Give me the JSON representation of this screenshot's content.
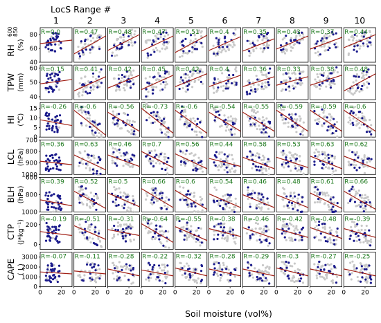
{
  "chart_data": {
    "type": "scatter",
    "title": "LocS  Range #",
    "xlabel": "Soil moisture (vol%)",
    "columns": [
      "1",
      "2",
      "3",
      "4",
      "5",
      "6",
      "7",
      "8",
      "9",
      "10"
    ],
    "x_range": [
      0,
      30
    ],
    "x_ticks": [
      "0",
      "20"
    ],
    "colors": {
      "highlighted_points": "#1a1a8c",
      "background_points": "#c8c8c8",
      "regression_line": "#a01e14",
      "r_label": "#1e7a1e"
    },
    "rows": [
      {
        "name": "RH",
        "sub_top": "600",
        "sub_bottom": "850",
        "unit": "(%)",
        "y_range": [
          40,
          90
        ],
        "y_ticks": [
          {
            "label": "80",
            "value": 80
          },
          {
            "label": "60",
            "value": 60
          },
          {
            "label": "40",
            "value": 40
          }
        ],
        "r_values": [
          "R=0.0",
          "R=0.47",
          "R=0.48",
          "R=0.47",
          "R=0.51",
          "R=0.4",
          "R=0.35",
          "R=0.43",
          "R=0.37",
          "R=0.44"
        ],
        "fit_start": [
          67,
          52,
          57,
          56,
          54,
          57,
          56,
          59,
          59,
          61
        ],
        "fit_end": [
          72,
          78,
          80,
          78,
          79,
          77,
          74,
          78,
          76,
          80
        ]
      },
      {
        "name": "TPW",
        "sub_top": "",
        "sub_bottom": "",
        "unit": "(mm)",
        "y_range": [
          38,
          62
        ],
        "y_ticks": [
          {
            "label": "60",
            "value": 60
          },
          {
            "label": "50",
            "value": 50
          },
          {
            "label": "40",
            "value": 40
          }
        ],
        "r_values": [
          "R=0.15",
          "R=0.41",
          "R=0.42",
          "R=0.45",
          "R=0.42",
          "R=0.4",
          "R=0.36",
          "R=0.33",
          "R=0.38",
          "R=0.48"
        ],
        "fit_start": [
          49,
          44,
          46,
          45,
          47,
          47,
          47,
          48,
          48,
          44
        ],
        "fit_end": [
          52,
          54,
          55,
          55,
          56,
          55,
          54,
          54,
          55,
          56
        ]
      },
      {
        "name": "HI",
        "sub_top": "",
        "sub_bottom": "",
        "unit": "(℃)",
        "y_range": [
          0,
          18
        ],
        "y_ticks": [
          {
            "label": "15",
            "value": 15
          },
          {
            "label": "10",
            "value": 10
          },
          {
            "label": "5",
            "value": 5
          },
          {
            "label": "0",
            "value": 0
          }
        ],
        "r_values": [
          "R=-0.26",
          "R=-0.6",
          "R=-0.56",
          "R=-0.73",
          "R=-0.6",
          "R=-0.54",
          "R=-0.55",
          "R=-0.59",
          "R=-0.59",
          "R=-0.6"
        ],
        "fit_start": [
          9,
          14,
          13,
          15,
          14,
          13,
          13,
          14,
          14,
          14
        ],
        "fit_end": [
          6,
          1,
          3,
          2,
          2,
          3,
          3,
          3,
          3,
          3
        ]
      },
      {
        "name": "LCL",
        "sub_top": "",
        "sub_bottom": "",
        "unit": "(hPa)",
        "y_range": [
          700,
          1000
        ],
        "y_invert": true,
        "y_ticks": [
          {
            "label": "700",
            "value": 700
          },
          {
            "label": "800",
            "value": 800
          },
          {
            "label": "900",
            "value": 900
          },
          {
            "label": "1000",
            "value": 1000
          }
        ],
        "r_values": [
          "R=0.36",
          "R=0.63",
          "R=0.46",
          "R=0.7",
          "R=0.56",
          "R=0.44",
          "R=0.58",
          "R=0.53",
          "R=0.63",
          "R=0.62"
        ],
        "fit_start": [
          885,
          830,
          830,
          800,
          820,
          860,
          850,
          850,
          840,
          840
        ],
        "fit_end": [
          915,
          960,
          930,
          940,
          950,
          930,
          950,
          940,
          950,
          950
        ]
      },
      {
        "name": "BLH",
        "sub_top": "",
        "sub_bottom": "",
        "unit": "(hPa)",
        "y_range": [
          600,
          1000
        ],
        "y_invert": true,
        "y_ticks": [
          {
            "label": "600",
            "value": 600
          },
          {
            "label": "800",
            "value": 800
          },
          {
            "label": "1000",
            "value": 1000
          }
        ],
        "r_values": [
          "R=0.39",
          "R=0.52",
          "R=0.5",
          "R=0.66",
          "R=0.6",
          "R=0.54",
          "R=0.46",
          "R=0.48",
          "R=0.61",
          "R=0.66"
        ],
        "fit_start": [
          860,
          760,
          780,
          730,
          750,
          790,
          800,
          800,
          780,
          760
        ],
        "fit_end": [
          930,
          960,
          940,
          950,
          970,
          950,
          950,
          950,
          960,
          970
        ]
      },
      {
        "name": "CTP",
        "sub_top": "",
        "sub_bottom": "",
        "unit": "(J*kg⁻¹)",
        "y_range": [
          -50,
          300
        ],
        "y_ticks": [
          {
            "label": "200",
            "value": 200
          },
          {
            "label": "0",
            "value": 0
          }
        ],
        "r_values": [
          "R=-0.19",
          "R=-0.51",
          "R=-0.31",
          "R=-0.64",
          "R=-0.55",
          "R=-0.38",
          "R=-0.46",
          "R=-0.42",
          "R=-0.48",
          "R=-0.39"
        ],
        "fit_start": [
          130,
          190,
          150,
          210,
          180,
          160,
          170,
          160,
          170,
          160
        ],
        "fit_end": [
          90,
          50,
          90,
          20,
          40,
          80,
          60,
          70,
          60,
          70
        ]
      },
      {
        "name": "CAPE",
        "sub_top": "",
        "sub_bottom": "",
        "unit": "( J )",
        "y_range": [
          0,
          3500
        ],
        "y_ticks": [
          {
            "label": "3000",
            "value": 3000
          },
          {
            "label": "2000",
            "value": 2000
          },
          {
            "label": "1000",
            "value": 1000
          },
          {
            "label": "0",
            "value": 0
          }
        ],
        "r_values": [
          "R=-0.07",
          "R=-0.11",
          "R=-0.28",
          "R=-0.22",
          "R=-0.32",
          "R=-0.28",
          "R=-0.29",
          "R=-0.3",
          "R=-0.27",
          "R=-0.25"
        ],
        "fit_start": [
          1500,
          1600,
          1800,
          1700,
          1900,
          1800,
          1800,
          1900,
          1800,
          1800
        ],
        "fit_end": [
          1300,
          1300,
          1100,
          1100,
          1100,
          1100,
          1100,
          1100,
          1100,
          1100
        ]
      }
    ]
  }
}
